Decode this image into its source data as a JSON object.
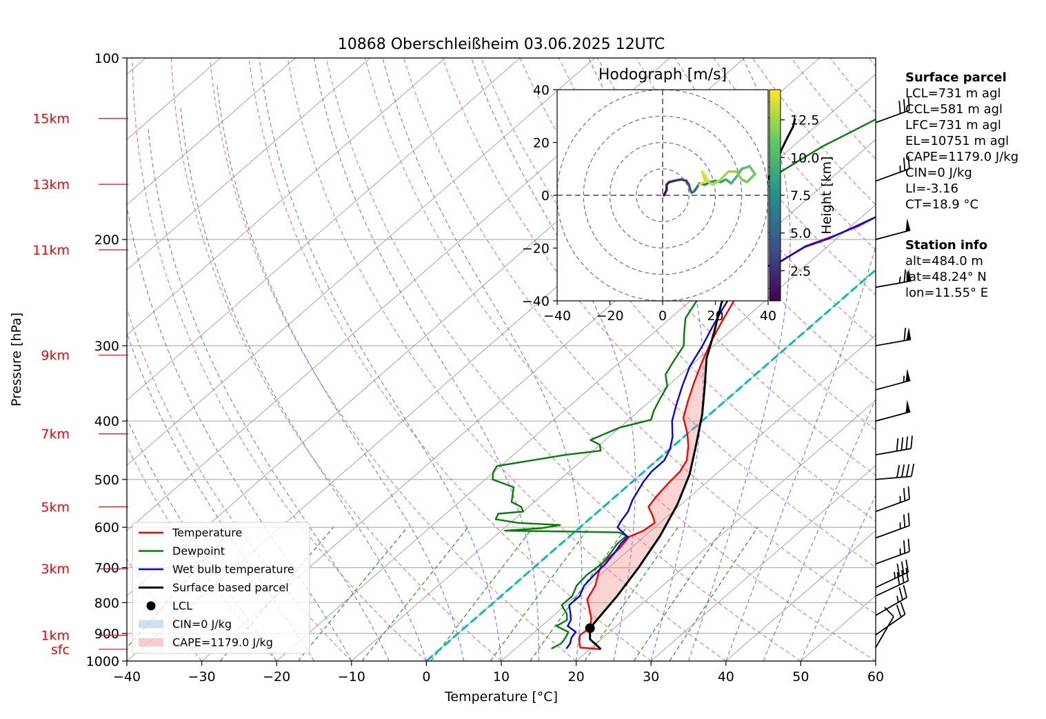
{
  "chart_data": {
    "type": "line",
    "title": "10868 Oberschleißheim 03.06.2025 12UTC",
    "xlabel": "Temperature [°C]",
    "ylabel": "Pressure [hPa]",
    "xlim": [
      -40,
      60
    ],
    "ylim": [
      1000,
      100
    ],
    "y_scale": "log",
    "x_ticks": [
      "−40",
      "−30",
      "−20",
      "−10",
      "0",
      "10",
      "20",
      "30",
      "40",
      "50",
      "60"
    ],
    "y_ticks": [
      "100",
      "200",
      "300",
      "400",
      "500",
      "600",
      "700",
      "800",
      "900",
      "1000"
    ],
    "height_labels": [
      {
        "text": "15km",
        "p": 126
      },
      {
        "text": "13km",
        "p": 162
      },
      {
        "text": "11km",
        "p": 208
      },
      {
        "text": "9km",
        "p": 311
      },
      {
        "text": "7km",
        "p": 420
      },
      {
        "text": "5km",
        "p": 555
      },
      {
        "text": "3km",
        "p": 703
      },
      {
        "text": "1km",
        "p": 906
      },
      {
        "text": "sfc",
        "p": 956
      }
    ],
    "legend": {
      "placement": "lower-left",
      "entries": [
        "Temperature",
        "Dewpoint",
        "Wet bulb temperature",
        "Surface based parcel",
        "LCL",
        "CIN=0 J/kg",
        "CAPE=1179.0 J/kg"
      ]
    },
    "colors": {
      "temperature": "#ff0000",
      "dewpoint": "#008000",
      "wetbulb": "#0000ff",
      "parcel": "#000000",
      "cape_fill": "#f08080",
      "cin_fill": "#87aee0",
      "freezing": "#00bfbf",
      "dry_adiabat": "#f07070",
      "moist_adiabat": "#7070f0",
      "mixing_ratio": "#339933",
      "isotherm": "#aaaaaa"
    },
    "series": [
      {
        "name": "Temperature",
        "points": [
          [
            21.5,
            956
          ],
          [
            18.5,
            950
          ],
          [
            17.5,
            930
          ],
          [
            16.5,
            905
          ],
          [
            16.8,
            882
          ],
          [
            15.5,
            850
          ],
          [
            13.5,
            815
          ],
          [
            12,
            790
          ],
          [
            11,
            750
          ],
          [
            9.5,
            715
          ],
          [
            8.5,
            690
          ],
          [
            8.5,
            650
          ],
          [
            8,
            622
          ],
          [
            9,
            608
          ],
          [
            9.3,
            590
          ],
          [
            8,
            575
          ],
          [
            6,
            555
          ],
          [
            5.5,
            535
          ],
          [
            5,
            505
          ],
          [
            4.8,
            485
          ],
          [
            4,
            465
          ],
          [
            2,
            440
          ],
          [
            0,
            420
          ],
          [
            -3,
            395
          ],
          [
            -5,
            370
          ],
          [
            -7,
            345
          ],
          [
            -9,
            320
          ],
          [
            -11,
            295
          ],
          [
            -12.5,
            275
          ],
          [
            -14,
            255
          ],
          [
            -16,
            235
          ],
          [
            -16.8,
            228
          ],
          [
            -15.5,
            224
          ],
          [
            -14,
            217
          ],
          [
            -13,
            205
          ],
          [
            -11,
            198
          ],
          [
            -9,
            190
          ],
          [
            -8,
            183
          ],
          [
            -6,
            173
          ],
          [
            -5,
            163
          ],
          [
            -3,
            153
          ],
          [
            -2,
            145
          ],
          [
            -1,
            137
          ],
          [
            0,
            131
          ],
          [
            2,
            133
          ],
          [
            3,
            128
          ],
          [
            5,
            124
          ],
          [
            6.2,
            122
          ]
        ]
      },
      {
        "name": "Dewpoint",
        "points": [
          [
            14.8,
            954
          ],
          [
            15.3,
            935
          ],
          [
            15,
            915
          ],
          [
            14.5,
            895
          ],
          [
            12,
            875
          ],
          [
            12.5,
            855
          ],
          [
            11.5,
            835
          ],
          [
            9.5,
            808
          ],
          [
            9.5,
            780
          ],
          [
            8.5,
            750
          ],
          [
            8.2,
            720
          ],
          [
            8.5,
            690
          ],
          [
            8,
            660
          ],
          [
            7.5,
            640
          ],
          [
            7.5,
            620
          ],
          [
            6,
            612
          ],
          [
            -0.5,
            610
          ],
          [
            -9.5,
            608
          ],
          [
            -5,
            602
          ],
          [
            -3,
            595
          ],
          [
            -9,
            590
          ],
          [
            -12.5,
            582
          ],
          [
            -13,
            570
          ],
          [
            -10,
            565
          ],
          [
            -11,
            555
          ],
          [
            -13,
            545
          ],
          [
            -14,
            530
          ],
          [
            -15,
            515
          ],
          [
            -19,
            500
          ],
          [
            -20,
            487
          ],
          [
            -20.5,
            475
          ],
          [
            -13,
            455
          ],
          [
            -9,
            448
          ],
          [
            -10,
            438
          ],
          [
            -12,
            430
          ],
          [
            -11,
            420
          ],
          [
            -10,
            410
          ],
          [
            -7,
            398
          ],
          [
            -8,
            385
          ],
          [
            -9,
            368
          ],
          [
            -10,
            350
          ],
          [
            -12,
            335
          ],
          [
            -13,
            318
          ],
          [
            -14,
            300
          ],
          [
            -16,
            285
          ],
          [
            -18,
            270
          ],
          [
            -19,
            255
          ],
          [
            -20,
            240
          ],
          [
            -21,
            230
          ],
          [
            -21.5,
            222
          ],
          [
            -20,
            217
          ],
          [
            -26,
            212
          ],
          [
            -36,
            210
          ],
          [
            -30,
            208
          ],
          [
            -29,
            205
          ],
          [
            -32,
            200
          ],
          [
            -33,
            196
          ],
          [
            -32,
            190
          ],
          [
            -31,
            182
          ],
          [
            -30,
            174
          ],
          [
            -29.5,
            165
          ],
          [
            -28,
            157
          ],
          [
            -27,
            148
          ],
          [
            -26,
            140
          ],
          [
            -24.5,
            133
          ],
          [
            -23,
            126
          ]
        ]
      },
      {
        "name": "Wet bulb temperature",
        "points": [
          [
            16.8,
            954
          ],
          [
            16.5,
            935
          ],
          [
            15.8,
            915
          ],
          [
            15.5,
            895
          ],
          [
            13.5,
            875
          ],
          [
            13,
            855
          ],
          [
            12,
            835
          ],
          [
            10.5,
            808
          ],
          [
            10.5,
            780
          ],
          [
            9.5,
            750
          ],
          [
            9.2,
            720
          ],
          [
            9,
            690
          ],
          [
            8.5,
            660
          ],
          [
            8,
            640
          ],
          [
            7.8,
            622
          ],
          [
            6.5,
            612
          ],
          [
            5,
            600
          ],
          [
            4.5,
            585
          ],
          [
            4,
            565
          ],
          [
            2.8,
            540
          ],
          [
            1.5,
            505
          ],
          [
            1,
            485
          ],
          [
            1,
            465
          ],
          [
            0,
            445
          ],
          [
            -1.5,
            425
          ],
          [
            -4,
            400
          ],
          [
            -6,
            375
          ],
          [
            -8,
            350
          ],
          [
            -10,
            325
          ],
          [
            -11.5,
            300
          ],
          [
            -13,
            280
          ],
          [
            -14.5,
            260
          ],
          [
            -16,
            240
          ],
          [
            -17,
            230
          ],
          [
            -16,
            225
          ],
          [
            -14,
            218
          ],
          [
            -13,
            206
          ],
          [
            -11,
            199
          ],
          [
            -9.5,
            191
          ],
          [
            -8,
            183
          ],
          [
            -6,
            173
          ],
          [
            -5,
            163
          ],
          [
            -3.5,
            153
          ],
          [
            -2,
            145
          ],
          [
            -1,
            137
          ],
          [
            0,
            131
          ],
          [
            1.5,
            133
          ],
          [
            3,
            128
          ],
          [
            4.5,
            124
          ],
          [
            6,
            122
          ]
        ]
      },
      {
        "name": "Surface based parcel",
        "points": [
          [
            21.5,
            956
          ],
          [
            18.5,
            920
          ],
          [
            16.8,
            882
          ],
          [
            15.5,
            780
          ],
          [
            14,
            700
          ],
          [
            12,
            620
          ],
          [
            9.5,
            550
          ],
          [
            6.5,
            490
          ],
          [
            3,
            440
          ],
          [
            -1,
            390
          ],
          [
            -5,
            350
          ],
          [
            -9,
            315
          ],
          [
            -12,
            285
          ],
          [
            -15.5,
            255
          ],
          [
            -18,
            230
          ],
          [
            -20.5,
            210
          ],
          [
            -22.5,
            195
          ],
          [
            -25,
            180
          ],
          [
            -27.5,
            165
          ],
          [
            -29.5,
            150
          ],
          [
            -31,
            142
          ],
          [
            -32,
            136
          ],
          [
            -33,
            130
          ],
          [
            -34,
            126
          ]
        ]
      }
    ],
    "lcl": {
      "t": 16.8,
      "p": 882
    },
    "hodograph": {
      "title": "Hodograph [m/s]",
      "xlim": [
        -40,
        40
      ],
      "ylim": [
        -40,
        40
      ],
      "x_ticks": [
        "−40",
        "−20",
        "0",
        "20",
        "40"
      ],
      "y_ticks": [
        "40",
        "20",
        "0",
        "−20",
        "−40"
      ],
      "rings": [
        10,
        20,
        30,
        40
      ],
      "colorbar": {
        "label": "Height [km]",
        "ticks": [
          "2.5",
          "5.0",
          "7.5",
          "10.0",
          "12.5"
        ],
        "range": [
          0.5,
          14.5
        ]
      },
      "points": [
        [
          0.5,
          0,
          0.5
        ],
        [
          1.5,
          2,
          1
        ],
        [
          1.5,
          4,
          1.5
        ],
        [
          2.5,
          5,
          2
        ],
        [
          4.5,
          5.5,
          2.5
        ],
        [
          7,
          6,
          3
        ],
        [
          9,
          5.5,
          3.5
        ],
        [
          10,
          4,
          4
        ],
        [
          10.5,
          2,
          4.5
        ],
        [
          11,
          1,
          5
        ],
        [
          12,
          1.5,
          5.5
        ],
        [
          13,
          3,
          6
        ],
        [
          14,
          4.5,
          6.5
        ],
        [
          16,
          4,
          7
        ],
        [
          18,
          5,
          7.5
        ],
        [
          20,
          5.5,
          8
        ],
        [
          22,
          5,
          8.5
        ],
        [
          24,
          6,
          9
        ],
        [
          26,
          4.5,
          9.5
        ],
        [
          28,
          7,
          10
        ],
        [
          30,
          10,
          10.5
        ],
        [
          33,
          11,
          11
        ],
        [
          35,
          8,
          11.3
        ],
        [
          32,
          5,
          11.6
        ],
        [
          30,
          6,
          11.9
        ],
        [
          28,
          9,
          12.2
        ],
        [
          25,
          9,
          12.5
        ],
        [
          22,
          6,
          12.8
        ],
        [
          19,
          4,
          13.1
        ],
        [
          16,
          6,
          13.4
        ],
        [
          15,
          9,
          13.7
        ],
        [
          17,
          6,
          14
        ],
        [
          14,
          4,
          14.3
        ]
      ]
    },
    "wind_barbs": [
      {
        "p": 128,
        "speed_kt": 30,
        "dir": 250
      },
      {
        "p": 160,
        "speed_kt": 25,
        "dir": 250
      },
      {
        "p": 200,
        "speed_kt": 50,
        "dir": 255
      },
      {
        "p": 240,
        "speed_kt": 65,
        "dir": 260
      },
      {
        "p": 300,
        "speed_kt": 60,
        "dir": 260
      },
      {
        "p": 355,
        "speed_kt": 55,
        "dir": 255
      },
      {
        "p": 400,
        "speed_kt": 50,
        "dir": 255
      },
      {
        "p": 455,
        "speed_kt": 40,
        "dir": 260
      },
      {
        "p": 500,
        "speed_kt": 40,
        "dir": 265
      },
      {
        "p": 565,
        "speed_kt": 25,
        "dir": 250
      },
      {
        "p": 625,
        "speed_kt": 25,
        "dir": 250
      },
      {
        "p": 690,
        "speed_kt": 25,
        "dir": 250
      },
      {
        "p": 755,
        "speed_kt": 35,
        "dir": 245
      },
      {
        "p": 780,
        "speed_kt": 30,
        "dir": 245
      },
      {
        "p": 840,
        "speed_kt": 25,
        "dir": 240
      },
      {
        "p": 905,
        "speed_kt": 20,
        "dir": 235
      },
      {
        "p": 950,
        "speed_kt": 10,
        "dir": 210
      }
    ]
  },
  "info_panel": {
    "parcel_title": "Surface parcel",
    "parcel_lines": [
      "LCL=731 m agl",
      "CCL=581 m agl",
      "LFC=731 m agl",
      "EL=10751 m agl",
      "CAPE=1179.0 J/kg",
      "CIN=0 J/kg",
      "LI=-3.16",
      "CT=18.9 °C"
    ],
    "station_title": "Station info",
    "station_lines": [
      "alt=484.0 m",
      "lat=48.24° N",
      "lon=11.55° E"
    ]
  }
}
